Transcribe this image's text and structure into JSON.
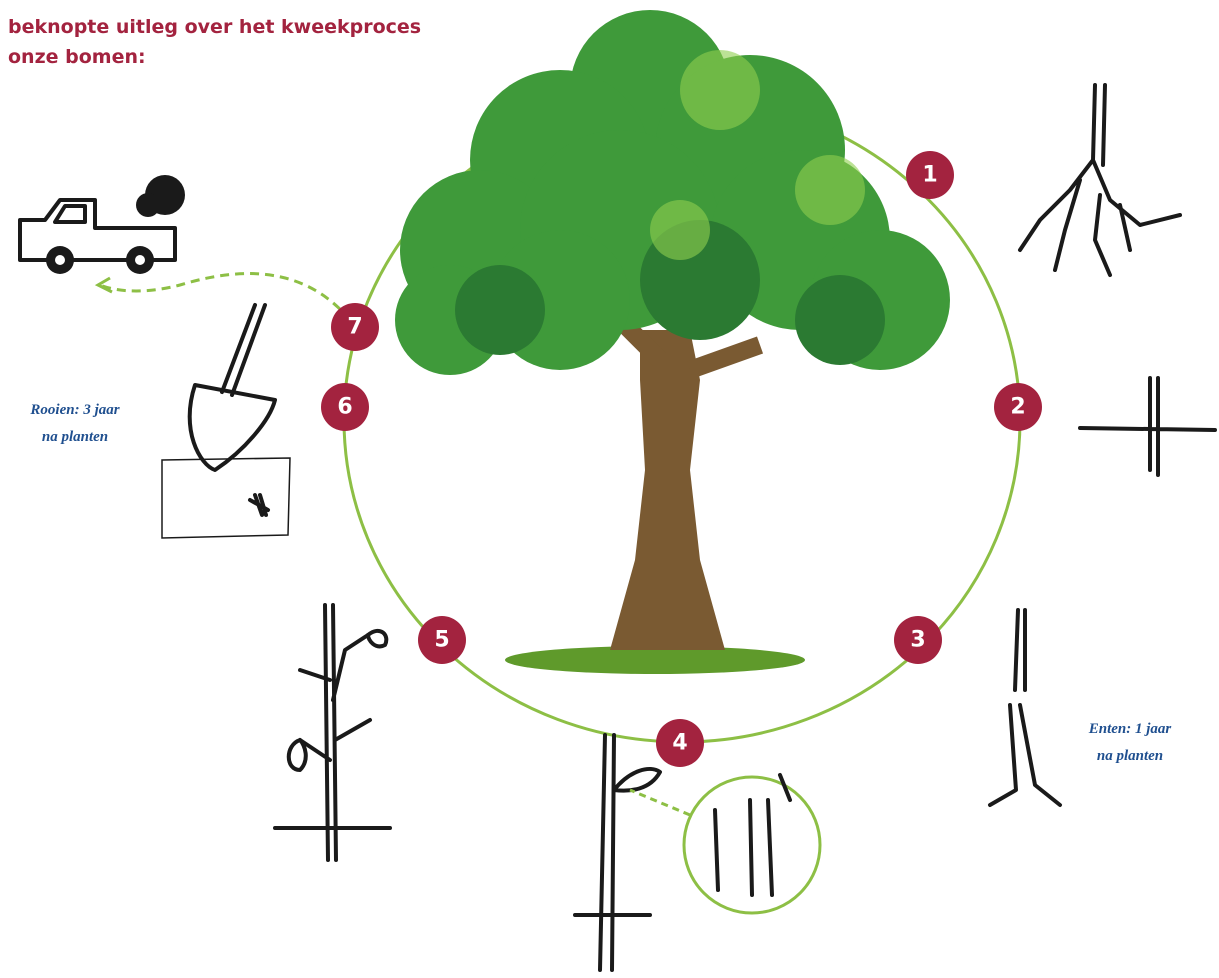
{
  "header": {
    "title_lines": [
      "beknopte uitleg over het kweekproces",
      "onze bomen:"
    ]
  },
  "steps": [
    {
      "label": "1"
    },
    {
      "label": "2"
    },
    {
      "label": "3"
    },
    {
      "label": "4"
    },
    {
      "label": "5"
    },
    {
      "label": "6"
    },
    {
      "label": "7"
    }
  ],
  "annotations": [
    {
      "lines": [
        "Rooien: 3 jaar",
        "na planten"
      ]
    },
    {
      "lines": [
        "Enten: 1 jaar",
        "na planten"
      ]
    }
  ]
}
